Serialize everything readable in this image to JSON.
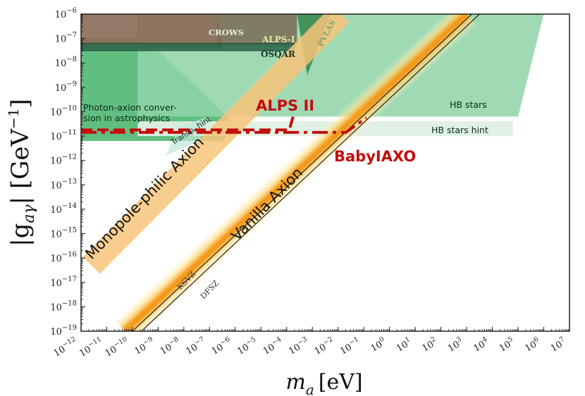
{
  "chart_data": {
    "type": "area",
    "xscale": "log",
    "yscale": "log",
    "xlim": [
      "1e-12",
      "1e7"
    ],
    "ylim": [
      "1e-19",
      "1e-6"
    ],
    "xlabel_main": "m",
    "xlabel_sub": "a",
    "xlabel_unit": "[eV]",
    "ylabel_main": "|g",
    "ylabel_sub": "aγ",
    "ylabel_unit": "| [GeV",
    "ylabel_exp": "−1",
    "ylabel_close": "]",
    "x_ticks": [
      {
        "base": "10",
        "exp": "−12"
      },
      {
        "base": "10",
        "exp": "−11"
      },
      {
        "base": "10",
        "exp": "−10"
      },
      {
        "base": "10",
        "exp": "−9"
      },
      {
        "base": "10",
        "exp": "−8"
      },
      {
        "base": "10",
        "exp": "−7"
      },
      {
        "base": "10",
        "exp": "−6"
      },
      {
        "base": "10",
        "exp": "−5"
      },
      {
        "base": "10",
        "exp": "−4"
      },
      {
        "base": "10",
        "exp": "−3"
      },
      {
        "base": "10",
        "exp": "−2"
      },
      {
        "base": "10",
        "exp": "−1"
      },
      {
        "base": "10",
        "exp": "0"
      },
      {
        "base": "10",
        "exp": "1"
      },
      {
        "base": "10",
        "exp": "2"
      },
      {
        "base": "10",
        "exp": "3"
      },
      {
        "base": "10",
        "exp": "4"
      },
      {
        "base": "10",
        "exp": "5"
      },
      {
        "base": "10",
        "exp": "6"
      },
      {
        "base": "10",
        "exp": "7"
      }
    ],
    "y_ticks": [
      {
        "base": "10",
        "exp": "−19"
      },
      {
        "base": "10",
        "exp": "−18"
      },
      {
        "base": "10",
        "exp": "−17"
      },
      {
        "base": "10",
        "exp": "−16"
      },
      {
        "base": "10",
        "exp": "−15"
      },
      {
        "base": "10",
        "exp": "−14"
      },
      {
        "base": "10",
        "exp": "−13"
      },
      {
        "base": "10",
        "exp": "−12"
      },
      {
        "base": "10",
        "exp": "−11"
      },
      {
        "base": "10",
        "exp": "−10"
      },
      {
        "base": "10",
        "exp": "−9"
      },
      {
        "base": "10",
        "exp": "−8"
      },
      {
        "base": "10",
        "exp": "−7"
      },
      {
        "base": "10",
        "exp": "−6"
      }
    ],
    "regions": [
      {
        "label": "Photon-axion conver-\nsion in astrophysics",
        "color": "#4fb872",
        "logx": [
          -12,
          -9.5,
          -7.5,
          -6,
          -6.5,
          -12
        ],
        "logy": [
          -7,
          -7,
          -9,
          -10.55,
          -11.2,
          -11.2
        ]
      },
      {
        "label": "HB stars",
        "color": "#8fd3a8",
        "logx": [
          -9.8,
          6,
          5,
          -9.8
        ],
        "logy": [
          -6,
          -6,
          -10.2,
          -10.2
        ]
      },
      {
        "label": "HB stars hint",
        "color": "#dff0e4",
        "logx": [
          -9.8,
          4.8,
          4.8,
          -9.8
        ],
        "logy": [
          -10.4,
          -10.4,
          -11,
          -11
        ]
      },
      {
        "label": "Transp. hint",
        "color": "#bfe8d8",
        "logx": [
          -8.2,
          -7,
          -7.4,
          -8.7
        ],
        "logy": [
          -10.6,
          -10.2,
          -11.2,
          -11.8
        ]
      },
      {
        "label": "CROWS",
        "color": "#8a6a55",
        "logx": [
          -12,
          -6.7,
          -6.5,
          -12
        ],
        "logy": [
          -6,
          -6,
          -7.4,
          -7.4
        ]
      },
      {
        "label": "ALPS-I",
        "color": "#7a6a55",
        "logx": [
          -6.7,
          -3.6,
          -3.6,
          -6.7
        ],
        "logy": [
          -6,
          -6,
          -7.3,
          -7.3
        ]
      },
      {
        "label": "OSQAR",
        "color": "#2f6a4f",
        "logx": [
          -12,
          -3.7,
          -3.7,
          -12
        ],
        "logy": [
          -7.2,
          -7.2,
          -7.5,
          -7.5
        ]
      },
      {
        "label": "PVLAS",
        "color": "#3a8a50",
        "logx": [
          -3.6,
          -2.3,
          -3.2
        ],
        "logy": [
          -6,
          -6,
          -8.5
        ]
      }
    ],
    "bands": [
      {
        "label": "Monopole-philic Axion",
        "color": "#f7c47a",
        "logx": [
          -11.6,
          -1.9
        ],
        "logy": [
          -16.3,
          -6
        ]
      },
      {
        "label": "Vanilla Axion",
        "color": "#f6b52c",
        "logx": [
          -10.3,
          3
        ],
        "logy": [
          -19,
          -6
        ]
      }
    ],
    "lines": [
      {
        "label": "KSVZ",
        "color": "#3a2a1a",
        "logx": [
          -10,
          3.2
        ],
        "logy": [
          -19,
          -6
        ]
      },
      {
        "label": "DFSZ",
        "color": "#3a2a1a",
        "logx": [
          -9.65,
          3.5
        ],
        "logy": [
          -19,
          -6
        ]
      }
    ],
    "projections": [
      {
        "label": "ALPS II",
        "color": "#c40d0d",
        "style": "dashed",
        "logx": [
          -12,
          -3.9,
          -3.75
        ],
        "logy": [
          -10.75,
          -10.75,
          -10.2
        ]
      },
      {
        "label": "BabyIAXO",
        "color": "#c40d0d",
        "style": "dashdot",
        "logx": [
          -12,
          -1.7,
          -0.9
        ],
        "logy": [
          -10.85,
          -10.85,
          -10.25
        ]
      }
    ]
  }
}
